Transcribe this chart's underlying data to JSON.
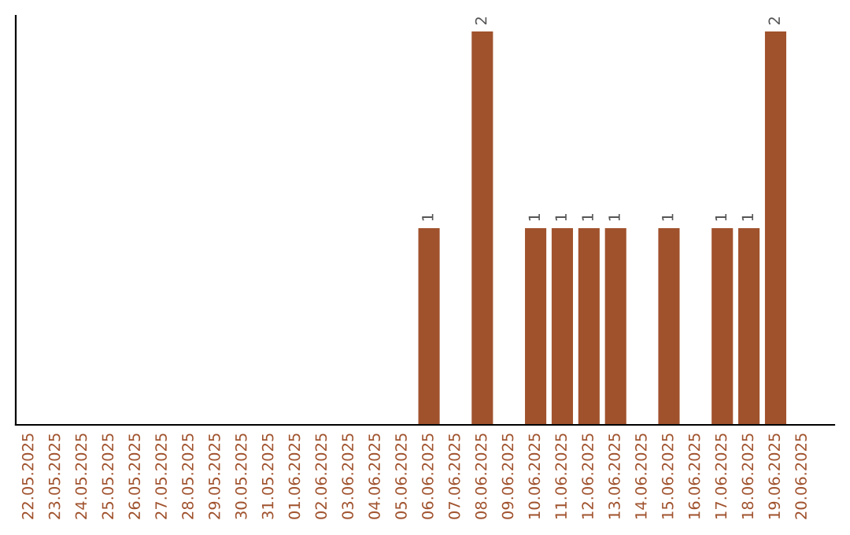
{
  "chart_data": {
    "type": "bar",
    "categories": [
      "22.05.2025",
      "23.05.2025",
      "24.05.2025",
      "25.05.2025",
      "26.05.2025",
      "27.05.2025",
      "28.05.2025",
      "29.05.2025",
      "30.05.2025",
      "31.05.2025",
      "01.06.2025",
      "02.06.2025",
      "03.06.2025",
      "04.06.2025",
      "05.06.2025",
      "06.06.2025",
      "07.06.2025",
      "08.06.2025",
      "09.06.2025",
      "10.06.2025",
      "11.06.2025",
      "12.06.2025",
      "13.06.2025",
      "14.06.2025",
      "15.06.2025",
      "16.06.2025",
      "17.06.2025",
      "18.06.2025",
      "19.06.2025",
      "20.06.2025"
    ],
    "values": [
      null,
      null,
      null,
      null,
      null,
      null,
      null,
      null,
      null,
      null,
      null,
      null,
      null,
      null,
      null,
      1,
      null,
      2,
      null,
      1,
      1,
      1,
      1,
      null,
      1,
      null,
      1,
      1,
      2,
      null
    ],
    "data_labels": true,
    "color": "#a0522d",
    "ylim": [
      0,
      2.08
    ],
    "tick_labels": "x",
    "grid": false
  }
}
